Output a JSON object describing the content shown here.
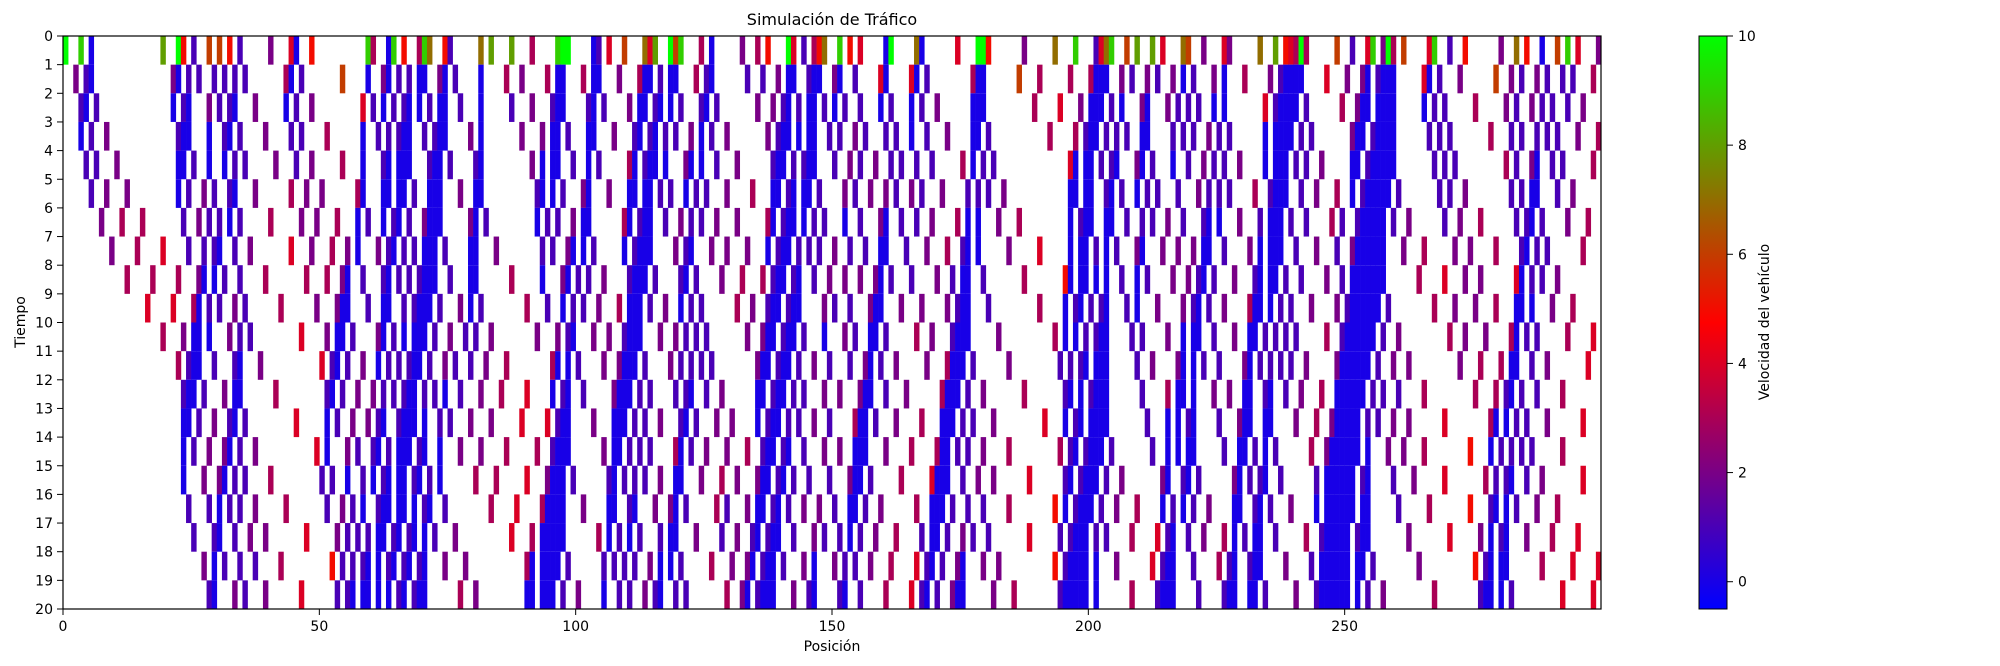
{
  "chart_data": {
    "type": "heatmap",
    "title": "Simulación de Tráfico",
    "xlabel": "Posición",
    "ylabel": "Tiempo",
    "xlim": [
      0,
      300
    ],
    "ylim": [
      20,
      0
    ],
    "x_ticks": [
      0,
      50,
      100,
      150,
      200,
      250
    ],
    "y_ticks": [
      0,
      1,
      2,
      3,
      4,
      5,
      6,
      7,
      8,
      9,
      10,
      11,
      12,
      13,
      14,
      15,
      16,
      17,
      18,
      19,
      20
    ],
    "colorbar": {
      "label": "Velocidad del vehículo",
      "min": -0.5,
      "max": 10,
      "ticks": [
        0,
        2,
        4,
        6,
        8,
        10
      ],
      "colors": [
        "#0000ff",
        "#ff0000",
        "#00ff00"
      ],
      "empty_color": "#ffffff"
    },
    "road_length": 300,
    "time_steps": 20,
    "density": 0.34,
    "seed": 7,
    "grid": false
  }
}
